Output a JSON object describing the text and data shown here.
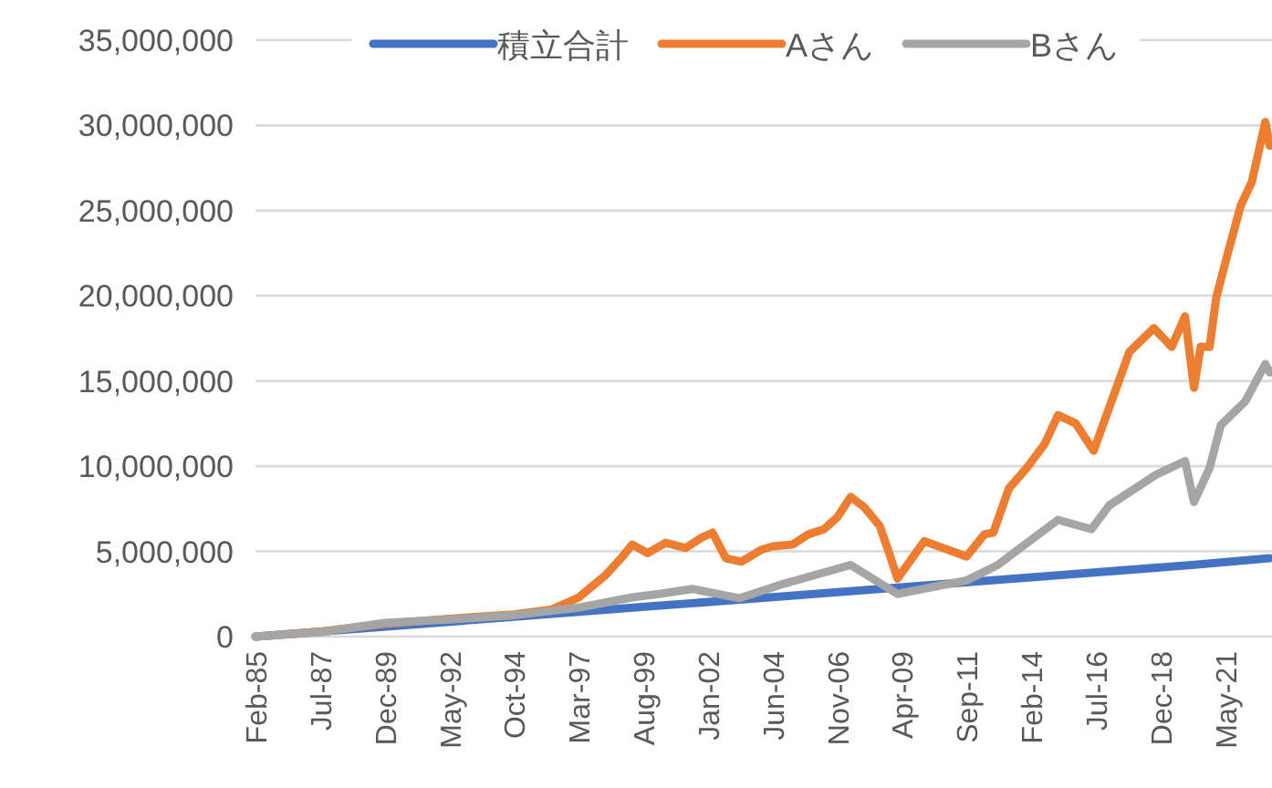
{
  "chart_data": {
    "type": "line",
    "grid": "y",
    "legend": "top",
    "xlim": [
      "1985-02",
      "2023-02"
    ],
    "ylim": [
      0,
      35000000
    ],
    "xticks": [
      {
        "value": "1985-02",
        "label": "Feb-85"
      },
      {
        "value": "1987-07",
        "label": "Jul-87"
      },
      {
        "value": "1989-12",
        "label": "Dec-89"
      },
      {
        "value": "1992-05",
        "label": "May-92"
      },
      {
        "value": "1994-10",
        "label": "Oct-94"
      },
      {
        "value": "1997-03",
        "label": "Mar-97"
      },
      {
        "value": "1999-08",
        "label": "Aug-99"
      },
      {
        "value": "2002-01",
        "label": "Jan-02"
      },
      {
        "value": "2004-06",
        "label": "Jun-04"
      },
      {
        "value": "2006-11",
        "label": "Nov-06"
      },
      {
        "value": "2009-04",
        "label": "Apr-09"
      },
      {
        "value": "2011-09",
        "label": "Sep-11"
      },
      {
        "value": "2014-02",
        "label": "Feb-14"
      },
      {
        "value": "2016-07",
        "label": "Jul-16"
      },
      {
        "value": "2018-12",
        "label": "Dec-18"
      },
      {
        "value": "2021-05",
        "label": "May-21"
      }
    ],
    "yticks": [
      0,
      {
        "value": 5000000,
        "label": "5,000,000"
      },
      {
        "value": 10000000,
        "label": "10,000,000"
      },
      {
        "value": 15000000,
        "label": "15,000,000"
      },
      {
        "value": 20000000,
        "label": "20,000,000"
      },
      {
        "value": 25000000,
        "label": "25,000,000"
      },
      {
        "value": 30000000,
        "label": "30,000,000"
      },
      {
        "value": 35000000,
        "label": "35,000,000"
      }
    ],
    "series": [
      {
        "name": "積立合計",
        "color": "#4472c4",
        "x": [
          "1985-02",
          "1990-02",
          "1995-02",
          "2000-02",
          "2005-02",
          "2010-02",
          "2015-02",
          "2020-02",
          "2023-01"
        ],
        "values": [
          0,
          600000,
          1200000,
          1800000,
          2400000,
          3000000,
          3600000,
          4200000,
          4600000
        ]
      },
      {
        "name": "Aさん",
        "color": "#ed7d31",
        "x": [
          "1985-02",
          "1987-07",
          "1989-12",
          "1992-05",
          "1994-10",
          "1996-03",
          "1997-03",
          "1998-03",
          "1998-10",
          "1999-03",
          "1999-10",
          "2000-06",
          "2001-03",
          "2001-10",
          "2002-03",
          "2002-09",
          "2003-04",
          "2004-01",
          "2004-06",
          "2005-03",
          "2005-10",
          "2006-05",
          "2006-11",
          "2007-05",
          "2007-11",
          "2008-06",
          "2008-10",
          "2009-02",
          "2010-02",
          "2011-09",
          "2012-05",
          "2012-09",
          "2013-04",
          "2013-12",
          "2014-08",
          "2015-02",
          "2015-10",
          "2016-06",
          "2017-02",
          "2017-10",
          "2018-09",
          "2019-05",
          "2019-11",
          "2020-03",
          "2020-06",
          "2020-10",
          "2021-01",
          "2021-06",
          "2021-12",
          "2022-05",
          "2022-11",
          "2023-01"
        ],
        "values": [
          0,
          300000,
          750000,
          1050000,
          1300000,
          1600000,
          2300000,
          3600000,
          4600000,
          5400000,
          4900000,
          5500000,
          5200000,
          5800000,
          6100000,
          4600000,
          4400000,
          5100000,
          5300000,
          5400000,
          6000000,
          6300000,
          7000000,
          8200000,
          7600000,
          6500000,
          5000000,
          3400000,
          5600000,
          4700000,
          6000000,
          6100000,
          8700000,
          9900000,
          11300000,
          13000000,
          12500000,
          10900000,
          13800000,
          16700000,
          18100000,
          17000000,
          18800000,
          14600000,
          17000000,
          17000000,
          19900000,
          22400000,
          25300000,
          26700000,
          30200000,
          28800000
        ]
      },
      {
        "name": "Bさん",
        "color": "#a5a5a5",
        "x": [
          "1985-02",
          "1987-07",
          "1989-12",
          "1992-05",
          "1994-10",
          "1997-03",
          "1999-03",
          "2000-03",
          "2001-06",
          "2003-03",
          "2004-11",
          "2007-05",
          "2009-02",
          "2011-09",
          "2012-11",
          "2013-07",
          "2015-02",
          "2016-05",
          "2017-01",
          "2018-10",
          "2019-11",
          "2020-03",
          "2020-10",
          "2021-03",
          "2022-02",
          "2022-11",
          "2023-01"
        ],
        "values": [
          0,
          250000,
          800000,
          1000000,
          1250000,
          1700000,
          2300000,
          2500000,
          2800000,
          2250000,
          3100000,
          4200000,
          2500000,
          3300000,
          4200000,
          5000000,
          6850000,
          6300000,
          7700000,
          9500000,
          10300000,
          7900000,
          9900000,
          12400000,
          13800000,
          16000000,
          15500000
        ]
      }
    ]
  }
}
